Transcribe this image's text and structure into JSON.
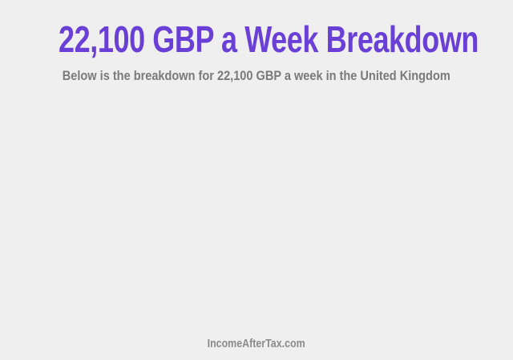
{
  "header": {
    "title": "22,100 GBP a Week Breakdown",
    "subtitle": "Below is the breakdown for 22,100 GBP a week in the United Kingdom"
  },
  "footer": {
    "site_link": "IncomeAfterTax.com"
  },
  "colors": {
    "title": "#6a3fd6",
    "subtitle": "#7a7a7a",
    "background": "#efefef"
  }
}
